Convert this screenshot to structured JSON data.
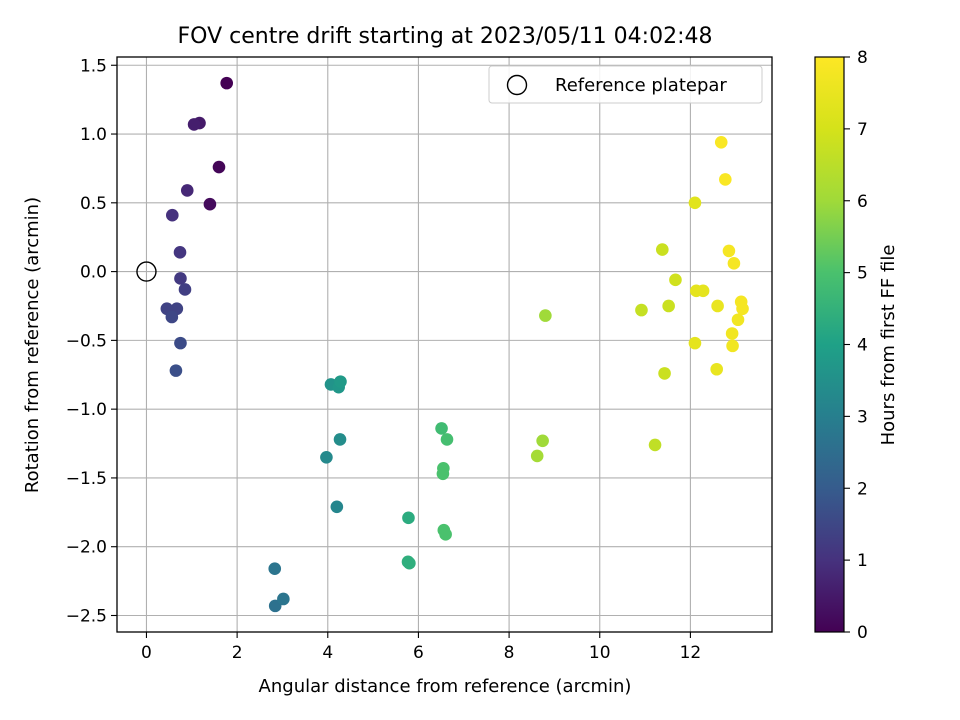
{
  "chart_data": {
    "type": "scatter",
    "title": "FOV centre drift starting at 2023/05/11 04:02:48",
    "xlabel": "Angular distance from reference (arcmin)",
    "ylabel": "Rotation from reference (arcmin)",
    "xlim": [
      -0.65,
      13.8
    ],
    "ylim": [
      -2.62,
      1.56
    ],
    "xticks": [
      0,
      2,
      4,
      6,
      8,
      10,
      12
    ],
    "yticks": [
      -2.5,
      -2.0,
      -1.5,
      -1.0,
      -0.5,
      0.0,
      0.5,
      1.0,
      1.5
    ],
    "ytick_labels": [
      "−2.5",
      "−2.0",
      "−1.5",
      "−1.0",
      "−0.5",
      "0.0",
      "0.5",
      "1.0",
      "1.5"
    ],
    "grid": true,
    "legend": {
      "label": "Reference platepar",
      "placement": "top-right"
    },
    "reference_point": {
      "x": 0,
      "y": 0
    },
    "colorbar": {
      "label": "Hours from first FF file",
      "range": [
        0,
        8
      ],
      "ticks": [
        0,
        1,
        2,
        3,
        4,
        5,
        6,
        7,
        8
      ],
      "colormap": "viridis"
    },
    "points": [
      {
        "x": 1.77,
        "y": 1.37,
        "c": 0.0
      },
      {
        "x": 1.6,
        "y": 0.76,
        "c": 0.1
      },
      {
        "x": 1.4,
        "y": 0.49,
        "c": 0.2
      },
      {
        "x": 1.17,
        "y": 1.08,
        "c": 0.5
      },
      {
        "x": 1.05,
        "y": 1.07,
        "c": 0.6
      },
      {
        "x": 0.9,
        "y": 0.59,
        "c": 0.8
      },
      {
        "x": 0.57,
        "y": 0.41,
        "c": 1.0
      },
      {
        "x": 0.74,
        "y": 0.14,
        "c": 1.1
      },
      {
        "x": 0.75,
        "y": -0.05,
        "c": 1.2
      },
      {
        "x": 0.85,
        "y": -0.13,
        "c": 1.3
      },
      {
        "x": 0.67,
        "y": -0.27,
        "c": 1.4
      },
      {
        "x": 0.45,
        "y": -0.27,
        "c": 1.4
      },
      {
        "x": 0.56,
        "y": -0.33,
        "c": 1.5
      },
      {
        "x": 0.75,
        "y": -0.52,
        "c": 1.6
      },
      {
        "x": 0.65,
        "y": -0.72,
        "c": 1.7
      },
      {
        "x": 2.83,
        "y": -2.16,
        "c": 2.7
      },
      {
        "x": 2.84,
        "y": -2.43,
        "c": 2.6
      },
      {
        "x": 3.02,
        "y": -2.38,
        "c": 2.7
      },
      {
        "x": 4.2,
        "y": -1.71,
        "c": 3.2
      },
      {
        "x": 3.97,
        "y": -1.35,
        "c": 3.3
      },
      {
        "x": 4.27,
        "y": -1.22,
        "c": 3.4
      },
      {
        "x": 4.07,
        "y": -0.82,
        "c": 3.6
      },
      {
        "x": 4.24,
        "y": -0.84,
        "c": 3.7
      },
      {
        "x": 4.28,
        "y": -0.8,
        "c": 3.8
      },
      {
        "x": 5.78,
        "y": -1.79,
        "c": 4.3
      },
      {
        "x": 5.77,
        "y": -2.11,
        "c": 4.4
      },
      {
        "x": 5.8,
        "y": -2.12,
        "c": 4.4
      },
      {
        "x": 6.51,
        "y": -1.14,
        "c": 4.8
      },
      {
        "x": 6.63,
        "y": -1.22,
        "c": 4.9
      },
      {
        "x": 6.55,
        "y": -1.43,
        "c": 5.0
      },
      {
        "x": 6.54,
        "y": -1.47,
        "c": 5.0
      },
      {
        "x": 6.56,
        "y": -1.88,
        "c": 5.0
      },
      {
        "x": 6.6,
        "y": -1.91,
        "c": 5.0
      },
      {
        "x": 8.8,
        "y": -0.32,
        "c": 6.0
      },
      {
        "x": 8.74,
        "y": -1.23,
        "c": 6.0
      },
      {
        "x": 8.62,
        "y": -1.34,
        "c": 6.1
      },
      {
        "x": 10.92,
        "y": -0.28,
        "c": 6.7
      },
      {
        "x": 11.22,
        "y": -1.26,
        "c": 6.6
      },
      {
        "x": 11.38,
        "y": 0.16,
        "c": 6.8
      },
      {
        "x": 11.43,
        "y": -0.74,
        "c": 6.8
      },
      {
        "x": 11.52,
        "y": -0.25,
        "c": 6.8
      },
      {
        "x": 11.67,
        "y": -0.06,
        "c": 6.9
      },
      {
        "x": 12.1,
        "y": 0.5,
        "c": 7.3
      },
      {
        "x": 12.13,
        "y": -0.14,
        "c": 7.4
      },
      {
        "x": 12.28,
        "y": -0.14,
        "c": 7.4
      },
      {
        "x": 12.1,
        "y": -0.52,
        "c": 7.4
      },
      {
        "x": 12.6,
        "y": -0.25,
        "c": 7.5
      },
      {
        "x": 12.58,
        "y": -0.71,
        "c": 7.5
      },
      {
        "x": 12.68,
        "y": 0.94,
        "c": 7.9
      },
      {
        "x": 12.77,
        "y": 0.67,
        "c": 7.9
      },
      {
        "x": 12.85,
        "y": 0.15,
        "c": 7.8
      },
      {
        "x": 12.96,
        "y": 0.06,
        "c": 7.8
      },
      {
        "x": 12.92,
        "y": -0.45,
        "c": 7.7
      },
      {
        "x": 12.93,
        "y": -0.54,
        "c": 7.7
      },
      {
        "x": 13.05,
        "y": -0.35,
        "c": 7.7
      },
      {
        "x": 13.12,
        "y": -0.22,
        "c": 7.8
      },
      {
        "x": 13.15,
        "y": -0.27,
        "c": 7.8
      }
    ]
  }
}
